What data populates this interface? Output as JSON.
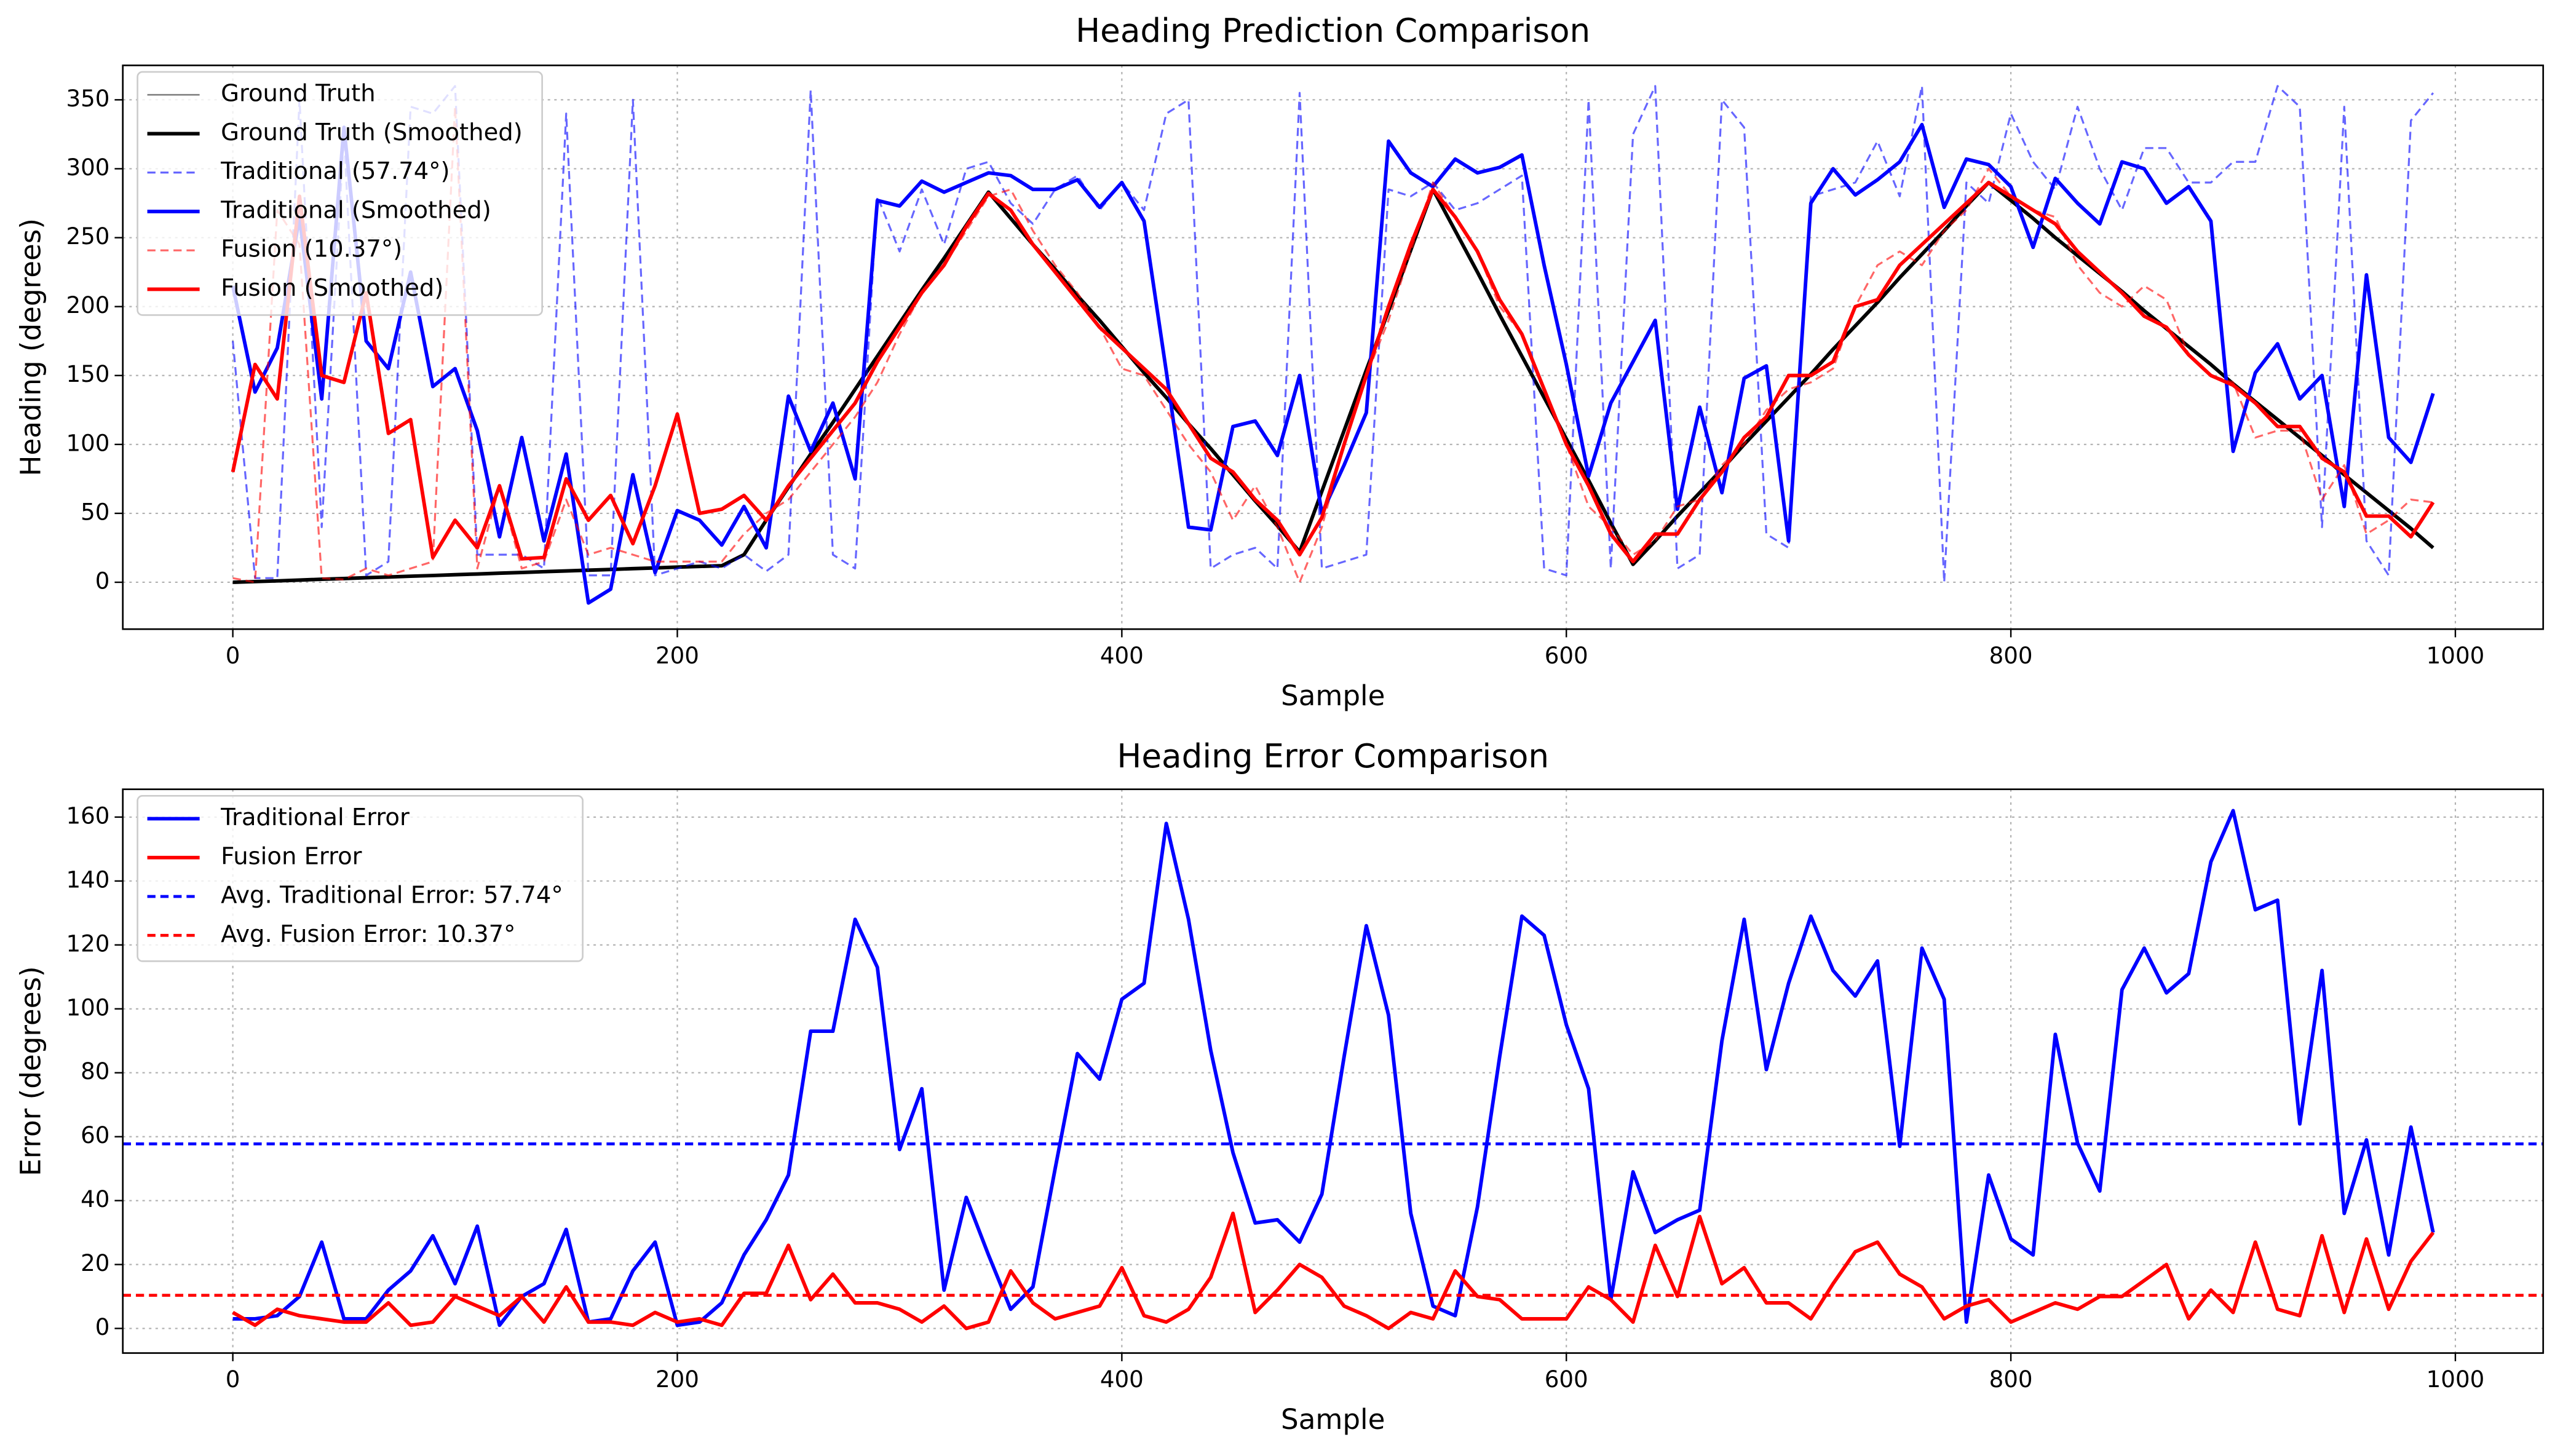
{
  "chart_data": [
    {
      "type": "line",
      "title": "Heading Prediction Comparison",
      "x_label": "Sample",
      "y_label": "Heading (degrees)",
      "x": [
        0,
        10,
        20,
        30,
        40,
        50,
        60,
        70,
        80,
        90,
        100,
        110,
        120,
        130,
        140,
        150,
        160,
        170,
        180,
        190,
        200,
        210,
        220,
        230,
        240,
        250,
        260,
        270,
        280,
        290,
        300,
        310,
        320,
        330,
        340,
        350,
        360,
        370,
        380,
        390,
        400,
        410,
        420,
        430,
        440,
        450,
        460,
        470,
        480,
        490,
        500,
        510,
        520,
        530,
        540,
        550,
        560,
        570,
        580,
        590,
        600,
        610,
        620,
        630,
        640,
        650,
        660,
        670,
        680,
        690,
        700,
        710,
        720,
        730,
        740,
        750,
        760,
        770,
        780,
        790,
        800,
        810,
        820,
        830,
        840,
        850,
        860,
        870,
        880,
        890,
        900,
        910,
        920,
        930,
        940,
        950,
        960,
        970,
        980,
        990
      ],
      "series": [
        {
          "name": "Ground Truth",
          "color": "#808080",
          "style": "solid",
          "width": 1,
          "values": [
            0,
            0.5,
            1,
            1.6,
            2.2,
            2.7,
            3.3,
            3.8,
            4.4,
            4.9,
            5.5,
            6,
            6.6,
            7.1,
            7.7,
            8.2,
            8.8,
            9.3,
            9.9,
            10.4,
            11,
            11.5,
            12,
            20,
            45,
            69,
            93,
            116,
            140,
            164,
            188,
            212,
            235,
            259,
            283,
            264,
            245,
            227,
            208,
            190,
            171,
            152,
            134,
            115,
            97,
            78,
            59,
            41,
            22,
            66,
            110,
            154,
            197,
            241,
            285,
            255,
            225,
            194,
            164,
            134,
            104,
            74,
            43,
            13,
            30,
            48,
            65,
            82,
            100,
            117,
            134,
            151,
            169,
            186,
            203,
            221,
            238,
            255,
            273,
            290,
            277,
            264,
            250,
            237,
            224,
            211,
            197,
            184,
            171,
            158,
            144,
            131,
            118,
            105,
            92,
            78,
            65,
            52,
            39,
            25
          ]
        },
        {
          "name": "Ground Truth (Smoothed)",
          "color": "#000000",
          "style": "solid",
          "width": 2.2,
          "values": [
            0,
            0.5,
            1,
            1.6,
            2.2,
            2.7,
            3.3,
            3.8,
            4.4,
            4.9,
            5.5,
            6,
            6.6,
            7.1,
            7.7,
            8.2,
            8.8,
            9.3,
            9.9,
            10.4,
            11,
            11.5,
            12,
            20,
            45,
            69,
            93,
            116,
            140,
            164,
            188,
            212,
            235,
            259,
            283,
            264,
            245,
            227,
            208,
            190,
            171,
            152,
            134,
            115,
            97,
            78,
            59,
            41,
            22,
            66,
            110,
            154,
            197,
            241,
            285,
            255,
            225,
            194,
            164,
            134,
            104,
            74,
            43,
            13,
            30,
            48,
            65,
            82,
            100,
            117,
            134,
            151,
            169,
            186,
            203,
            221,
            238,
            255,
            273,
            290,
            277,
            264,
            250,
            237,
            224,
            211,
            197,
            184,
            171,
            158,
            144,
            131,
            118,
            105,
            92,
            78,
            65,
            52,
            39,
            25
          ]
        },
        {
          "name": "Traditional (57.74°)",
          "color": "#0000ff",
          "style": "dashed",
          "width": 1.2,
          "values": [
            175,
            3,
            3,
            350,
            40,
            325,
            5,
            15,
            345,
            340,
            360,
            20,
            20,
            20,
            10,
            340,
            5,
            5,
            350,
            5,
            10,
            15,
            10,
            20,
            8,
            20,
            357,
            20,
            10,
            280,
            240,
            285,
            245,
            300,
            305,
            275,
            260,
            285,
            295,
            270,
            290,
            270,
            340,
            350,
            10,
            20,
            25,
            10,
            355,
            10,
            15,
            20,
            285,
            280,
            290,
            270,
            275,
            285,
            295,
            10,
            5,
            350,
            10,
            325,
            360,
            10,
            20,
            350,
            330,
            35,
            25,
            280,
            285,
            290,
            320,
            280,
            360,
            0,
            290,
            275,
            340,
            305,
            285,
            345,
            300,
            270,
            315,
            315,
            290,
            290,
            305,
            305,
            360,
            345,
            40,
            345,
            30,
            5,
            335,
            355
          ]
        },
        {
          "name": "Traditional (Smoothed)",
          "color": "#0000ff",
          "style": "solid",
          "width": 2.2,
          "values": [
            215,
            138,
            170,
            265,
            133,
            330,
            175,
            155,
            225,
            142,
            155,
            110,
            33,
            105,
            30,
            93,
            -15,
            -5,
            78,
            7,
            52,
            45,
            27,
            55,
            25,
            135,
            95,
            130,
            75,
            277,
            273,
            291,
            283,
            290,
            297,
            295,
            285,
            285,
            292,
            272,
            290,
            262,
            153,
            40,
            38,
            113,
            117,
            92,
            150,
            50,
            85,
            123,
            320,
            297,
            287,
            307,
            297,
            301,
            310,
            230,
            158,
            77,
            130,
            160,
            190,
            53,
            127,
            65,
            148,
            157,
            30,
            275,
            300,
            281,
            292,
            305,
            332,
            272,
            307,
            303,
            287,
            243,
            293,
            275,
            260,
            305,
            300,
            275,
            287,
            262,
            95,
            152,
            173,
            133,
            150,
            55,
            223,
            105,
            87,
            137
          ]
        },
        {
          "name": "Fusion (10.37°)",
          "color": "#ff0000",
          "style": "dashed",
          "width": 1.2,
          "values": [
            3,
            0,
            270,
            245,
            3,
            2,
            10,
            5,
            10,
            15,
            345,
            10,
            70,
            10,
            15,
            60,
            20,
            25,
            20,
            15,
            15,
            15,
            15,
            35,
            50,
            60,
            80,
            100,
            120,
            145,
            180,
            210,
            230,
            255,
            280,
            285,
            255,
            230,
            210,
            185,
            155,
            150,
            125,
            100,
            80,
            45,
            70,
            40,
            0,
            40,
            100,
            150,
            190,
            240,
            290,
            265,
            240,
            200,
            180,
            140,
            100,
            55,
            40,
            20,
            30,
            55,
            60,
            85,
            100,
            125,
            140,
            145,
            155,
            200,
            230,
            240,
            230,
            255,
            270,
            300,
            280,
            270,
            265,
            230,
            210,
            200,
            215,
            205,
            165,
            150,
            145,
            105,
            110,
            110,
            60,
            85,
            35,
            45,
            60,
            58
          ]
        },
        {
          "name": "Fusion (Smoothed)",
          "color": "#ff0000",
          "style": "solid",
          "width": 2.2,
          "values": [
            80,
            158,
            133,
            280,
            150,
            145,
            210,
            108,
            118,
            18,
            45,
            25,
            70,
            17,
            18,
            75,
            45,
            63,
            28,
            70,
            122,
            50,
            53,
            63,
            45,
            70,
            90,
            110,
            130,
            160,
            185,
            210,
            230,
            258,
            282,
            270,
            245,
            225,
            205,
            185,
            170,
            155,
            140,
            115,
            90,
            80,
            60,
            45,
            20,
            47,
            100,
            150,
            200,
            245,
            285,
            265,
            240,
            205,
            180,
            140,
            100,
            70,
            35,
            15,
            35,
            35,
            60,
            80,
            105,
            120,
            150,
            150,
            160,
            200,
            205,
            230,
            245,
            260,
            275,
            290,
            280,
            270,
            260,
            240,
            225,
            210,
            193,
            185,
            165,
            150,
            143,
            130,
            113,
            113,
            90,
            80,
            48,
            48,
            33,
            58
          ]
        }
      ],
      "xlim": [
        -49.5,
        1039.5
      ],
      "ylim": [
        -34,
        375
      ],
      "xticks": [
        0,
        200,
        400,
        600,
        800,
        1000
      ],
      "yticks": [
        0,
        50,
        100,
        150,
        200,
        250,
        300,
        350
      ],
      "grid": true,
      "legend": "upper left"
    },
    {
      "type": "line",
      "title": "Heading Error Comparison",
      "x_label": "Sample",
      "y_label": "Error (degrees)",
      "x": [
        0,
        10,
        20,
        30,
        40,
        50,
        60,
        70,
        80,
        90,
        100,
        110,
        120,
        130,
        140,
        150,
        160,
        170,
        180,
        190,
        200,
        210,
        220,
        230,
        240,
        250,
        260,
        270,
        280,
        290,
        300,
        310,
        320,
        330,
        340,
        350,
        360,
        370,
        380,
        390,
        400,
        410,
        420,
        430,
        440,
        450,
        460,
        470,
        480,
        490,
        500,
        510,
        520,
        530,
        540,
        550,
        560,
        570,
        580,
        590,
        600,
        610,
        620,
        630,
        640,
        650,
        660,
        670,
        680,
        690,
        700,
        710,
        720,
        730,
        740,
        750,
        760,
        770,
        780,
        790,
        800,
        810,
        820,
        830,
        840,
        850,
        860,
        870,
        880,
        890,
        900,
        910,
        920,
        930,
        940,
        950,
        960,
        970,
        980,
        990
      ],
      "series": [
        {
          "name": "Traditional Error",
          "color": "#0000ff",
          "style": "solid",
          "width": 2.2,
          "values": [
            3,
            3,
            4,
            10,
            27,
            3,
            3,
            12,
            18,
            29,
            14,
            32,
            1,
            10,
            14,
            31,
            2,
            3,
            18,
            27,
            1,
            2,
            8,
            23,
            34,
            48,
            93,
            93,
            128,
            113,
            56,
            75,
            12,
            41,
            23,
            6,
            13,
            50,
            86,
            78,
            103,
            108,
            158,
            128,
            87,
            55,
            33,
            34,
            27,
            42,
            85,
            126,
            98,
            36,
            7,
            4,
            38,
            85,
            129,
            123,
            95,
            75,
            9,
            49,
            30,
            34,
            37,
            90,
            128,
            81,
            108,
            129,
            112,
            104,
            115,
            57,
            119,
            103,
            2,
            48,
            28,
            23,
            92,
            58,
            43,
            106,
            119,
            105,
            111,
            146,
            162,
            131,
            134,
            64,
            112,
            36,
            59,
            23,
            63,
            30
          ]
        },
        {
          "name": "Fusion Error",
          "color": "#ff0000",
          "style": "solid",
          "width": 2.2,
          "values": [
            5,
            1,
            6,
            4,
            3,
            2,
            2,
            8,
            1,
            2,
            10,
            7,
            4,
            10,
            2,
            13,
            2,
            2,
            1,
            5,
            2,
            3,
            1,
            11,
            11,
            26,
            9,
            17,
            8,
            8,
            6,
            2,
            7,
            0,
            2,
            18,
            8,
            3,
            5,
            7,
            19,
            4,
            2,
            6,
            16,
            36,
            5,
            12,
            20,
            16,
            7,
            4,
            0,
            5,
            3,
            18,
            10,
            9,
            3,
            3,
            3,
            13,
            9,
            2,
            26,
            10,
            35,
            14,
            19,
            8,
            8,
            3,
            14,
            24,
            27,
            17,
            13,
            3,
            7,
            9,
            2,
            5,
            8,
            6,
            10,
            10,
            15,
            20,
            3,
            12,
            5,
            27,
            6,
            4,
            29,
            5,
            28,
            6,
            21,
            30
          ]
        }
      ],
      "hlines": [
        {
          "name": "Avg. Traditional Error: 57.74°",
          "color": "#0000ff",
          "style": "dashed",
          "value": 57.74
        },
        {
          "name": "Avg. Fusion Error: 10.37°",
          "color": "#ff0000",
          "style": "dashed",
          "value": 10.37
        }
      ],
      "xlim": [
        -49.5,
        1039.5
      ],
      "ylim": [
        -7.7,
        168.7
      ],
      "xticks": [
        0,
        200,
        400,
        600,
        800,
        1000
      ],
      "yticks": [
        0,
        20,
        40,
        60,
        80,
        100,
        120,
        140,
        160
      ],
      "grid": true,
      "legend": "upper left"
    }
  ]
}
